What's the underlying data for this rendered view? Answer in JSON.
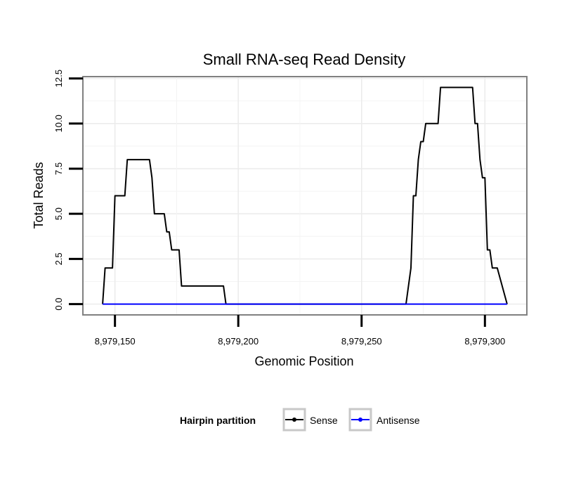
{
  "chart_data": {
    "type": "line",
    "title": "Small RNA-seq Read Density",
    "xlabel": "Genomic Position",
    "ylabel": "Total Reads",
    "xlim": [
      8979137,
      8979317
    ],
    "ylim": [
      -0.6,
      12.6
    ],
    "x_ticks": [
      {
        "value": 8979150,
        "label": "8,979,150"
      },
      {
        "value": 8979200,
        "label": "8,979,200"
      },
      {
        "value": 8979250,
        "label": "8,979,250"
      },
      {
        "value": 8979300,
        "label": "8,979,300"
      }
    ],
    "y_ticks": [
      {
        "value": 0,
        "label": "0.0"
      },
      {
        "value": 2.5,
        "label": "2.5"
      },
      {
        "value": 5,
        "label": "5.0"
      },
      {
        "value": 7.5,
        "label": "7.5"
      },
      {
        "value": 10,
        "label": "10.0"
      },
      {
        "value": 12.5,
        "label": "12.5"
      }
    ],
    "grid": true,
    "legend": {
      "title": "Hairpin partition",
      "position": "bottom",
      "entries": [
        {
          "name": "Sense",
          "color": "#000000"
        },
        {
          "name": "Antisense",
          "color": "#0000ff"
        }
      ]
    },
    "series": [
      {
        "name": "Sense",
        "color": "#000000",
        "x": [
          8979145,
          8979146,
          8979149,
          8979150,
          8979154,
          8979155,
          8979164,
          8979165,
          8979166,
          8979170,
          8979171,
          8979172,
          8979173,
          8979176,
          8979177,
          8979194,
          8979195,
          8979268,
          8979270,
          8979271,
          8979272,
          8979273,
          8979274,
          8979275,
          8979276,
          8979277,
          8979281,
          8979282,
          8979295,
          8979296,
          8979297,
          8979298,
          8979299,
          8979300,
          8979301,
          8979302,
          8979303,
          8979304,
          8979305,
          8979309
        ],
        "y": [
          0,
          2,
          2,
          6,
          6,
          8,
          8,
          7,
          5,
          5,
          4,
          4,
          3,
          3,
          1,
          1,
          0,
          0,
          2,
          6,
          6,
          8,
          9,
          9,
          10,
          10,
          10,
          12,
          12,
          10,
          10,
          8,
          7,
          7,
          3,
          3,
          2,
          2,
          2,
          0
        ]
      },
      {
        "name": "Antisense",
        "color": "#0000ff",
        "x": [
          8979145,
          8979309
        ],
        "y": [
          0,
          0
        ]
      }
    ]
  }
}
